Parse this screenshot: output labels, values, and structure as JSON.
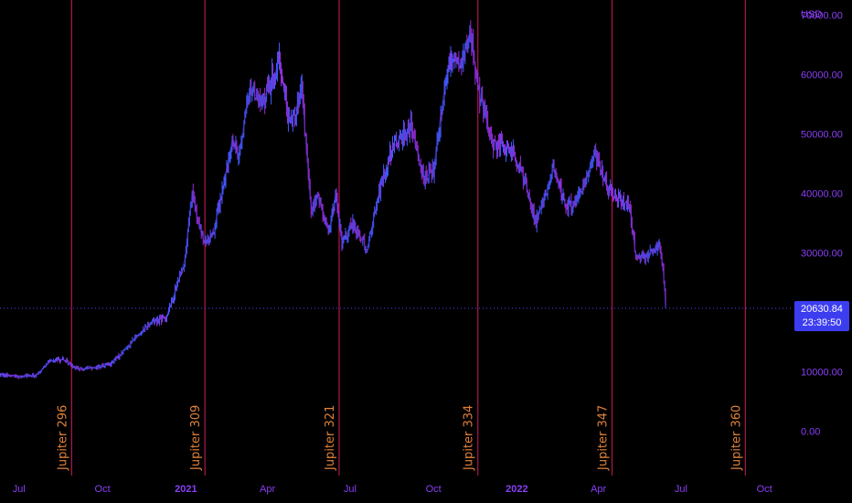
{
  "chart_data": {
    "type": "line",
    "y_unit": "USD",
    "ylim": [
      -7500,
      72500
    ],
    "xlim": [
      "2020-06-10",
      "2022-10-25"
    ],
    "grid": false,
    "y_ticks": [
      {
        "value": 0,
        "label": "0.00"
      },
      {
        "value": 10000,
        "label": "10000.00"
      },
      {
        "value": 30000,
        "label": "30000.00"
      },
      {
        "value": 40000,
        "label": "40000.00"
      },
      {
        "value": 50000,
        "label": "50000.00"
      },
      {
        "value": 60000,
        "label": "60000.00"
      },
      {
        "value": 70000,
        "label": "70000.00"
      }
    ],
    "x_ticks": [
      {
        "date": "2020-07-01",
        "label": "Jul",
        "bold": false
      },
      {
        "date": "2020-10-01",
        "label": "Oct",
        "bold": false
      },
      {
        "date": "2021-01-01",
        "label": "2021",
        "bold": true
      },
      {
        "date": "2021-04-01",
        "label": "Apr",
        "bold": false
      },
      {
        "date": "2021-07-01",
        "label": "Jul",
        "bold": false
      },
      {
        "date": "2021-10-01",
        "label": "Oct",
        "bold": false
      },
      {
        "date": "2022-01-01",
        "label": "2022",
        "bold": true
      },
      {
        "date": "2022-04-01",
        "label": "Apr",
        "bold": false
      },
      {
        "date": "2022-07-01",
        "label": "Jul",
        "bold": false
      },
      {
        "date": "2022-10-01",
        "label": "Oct",
        "bold": false
      }
    ],
    "vertical_markers": [
      {
        "date": "2020-08-28",
        "label": "Jupiter 296"
      },
      {
        "date": "2021-01-22",
        "label": "Jupiter 309"
      },
      {
        "date": "2021-06-19",
        "label": "Jupiter 321"
      },
      {
        "date": "2021-11-19",
        "label": "Jupiter 334"
      },
      {
        "date": "2022-04-16",
        "label": "Jupiter 347"
      },
      {
        "date": "2022-09-10",
        "label": "Jupiter 360"
      }
    ],
    "current_price": {
      "value": 20630.84,
      "label": "20630.84",
      "countdown": "23:39:50"
    },
    "series": [
      {
        "x": [
          "2020-06-10",
          "2020-07-01",
          "2020-07-20",
          "2020-08-02",
          "2020-08-17",
          "2020-09-05",
          "2020-09-25",
          "2020-10-10",
          "2020-10-21",
          "2020-11-05",
          "2020-11-25",
          "2020-12-10",
          "2020-12-20",
          "2020-12-31",
          "2021-01-08",
          "2021-01-14",
          "2021-01-22",
          "2021-01-31",
          "2021-02-08",
          "2021-02-21",
          "2021-02-28",
          "2021-03-13",
          "2021-03-25",
          "2021-04-08",
          "2021-04-14",
          "2021-04-25",
          "2021-05-09",
          "2021-05-19",
          "2021-05-26",
          "2021-06-08",
          "2021-06-15",
          "2021-06-22",
          "2021-07-05",
          "2021-07-20",
          "2021-08-01",
          "2021-08-14",
          "2021-08-23",
          "2021-09-06",
          "2021-09-21",
          "2021-10-01",
          "2021-10-10",
          "2021-10-20",
          "2021-11-01",
          "2021-11-10",
          "2021-11-20",
          "2021-12-04",
          "2021-12-15",
          "2021-12-27",
          "2022-01-10",
          "2022-01-22",
          "2022-02-10",
          "2022-02-24",
          "2022-03-10",
          "2022-03-28",
          "2022-04-11",
          "2022-04-25",
          "2022-05-05",
          "2022-05-12",
          "2022-05-25",
          "2022-06-06",
          "2022-06-10",
          "2022-06-13",
          "2022-06-14"
        ],
        "values": [
          9500,
          9200,
          9300,
          11600,
          12100,
          10400,
          10800,
          11300,
          12900,
          15500,
          18500,
          19000,
          23500,
          29000,
          40500,
          35000,
          31500,
          33500,
          38500,
          49000,
          46000,
          58000,
          55000,
          59500,
          62500,
          51500,
          57000,
          37000,
          39500,
          33500,
          40000,
          31500,
          35000,
          30500,
          39500,
          46500,
          49000,
          51000,
          42500,
          43800,
          54500,
          63500,
          61500,
          67000,
          57500,
          48500,
          48000,
          47000,
          42000,
          35000,
          44000,
          38000,
          39000,
          47000,
          40500,
          38500,
          38000,
          29500,
          29500,
          31500,
          29000,
          24000,
          20630
        ]
      }
    ]
  }
}
